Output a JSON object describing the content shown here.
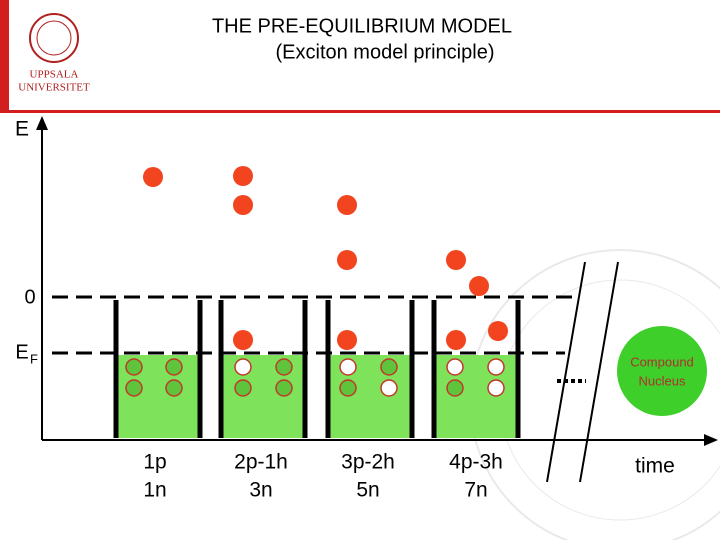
{
  "header": {
    "title": "THE PRE-EQUILIBRIUM MODEL",
    "subtitle": "(Exciton model principle)",
    "logo": [
      "UPPSALA",
      "UNIVERSITET"
    ]
  },
  "axis": {
    "energy": "E",
    "zero": "0",
    "fermi": "E",
    "fermi_subscript": "F",
    "time": "time"
  },
  "stages": [
    {
      "particles": "1p",
      "excitons": "1n"
    },
    {
      "particles": "2p-1h",
      "excitons": "3n"
    },
    {
      "particles": "3p-2h",
      "excitons": "5n"
    },
    {
      "particles": "4p-3h",
      "excitons": "7n"
    }
  ],
  "compound_nucleus": [
    "Compound",
    "Nucleus"
  ]
}
